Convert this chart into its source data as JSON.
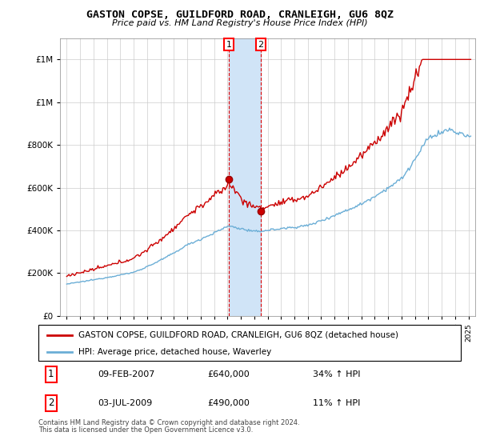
{
  "title": "GASTON COPSE, GUILDFORD ROAD, CRANLEIGH, GU6 8QZ",
  "subtitle": "Price paid vs. HM Land Registry's House Price Index (HPI)",
  "ytick_values": [
    0,
    200000,
    400000,
    600000,
    800000,
    1000000,
    1200000
  ],
  "ylim": [
    0,
    1300000
  ],
  "xlim_start": 1994.5,
  "xlim_end": 2025.5,
  "t1_x": 2007.1,
  "t1_y": 640000,
  "t2_x": 2009.5,
  "t2_y": 490000,
  "legend_entry1": "GASTON COPSE, GUILDFORD ROAD, CRANLEIGH, GU6 8QZ (detached house)",
  "legend_entry2": "HPI: Average price, detached house, Waverley",
  "footnote1": "Contains HM Land Registry data © Crown copyright and database right 2024.",
  "footnote2": "This data is licensed under the Open Government Licence v3.0.",
  "table_rows": [
    {
      "num": "1",
      "date": "09-FEB-2007",
      "price": "£640,000",
      "pct": "34% ↑ HPI"
    },
    {
      "num": "2",
      "date": "03-JUL-2009",
      "price": "£490,000",
      "pct": "11% ↑ HPI"
    }
  ],
  "hpi_color": "#6baed6",
  "price_color": "#cc0000",
  "shaded_color": "#d0e4f7",
  "grid_color": "#cccccc"
}
